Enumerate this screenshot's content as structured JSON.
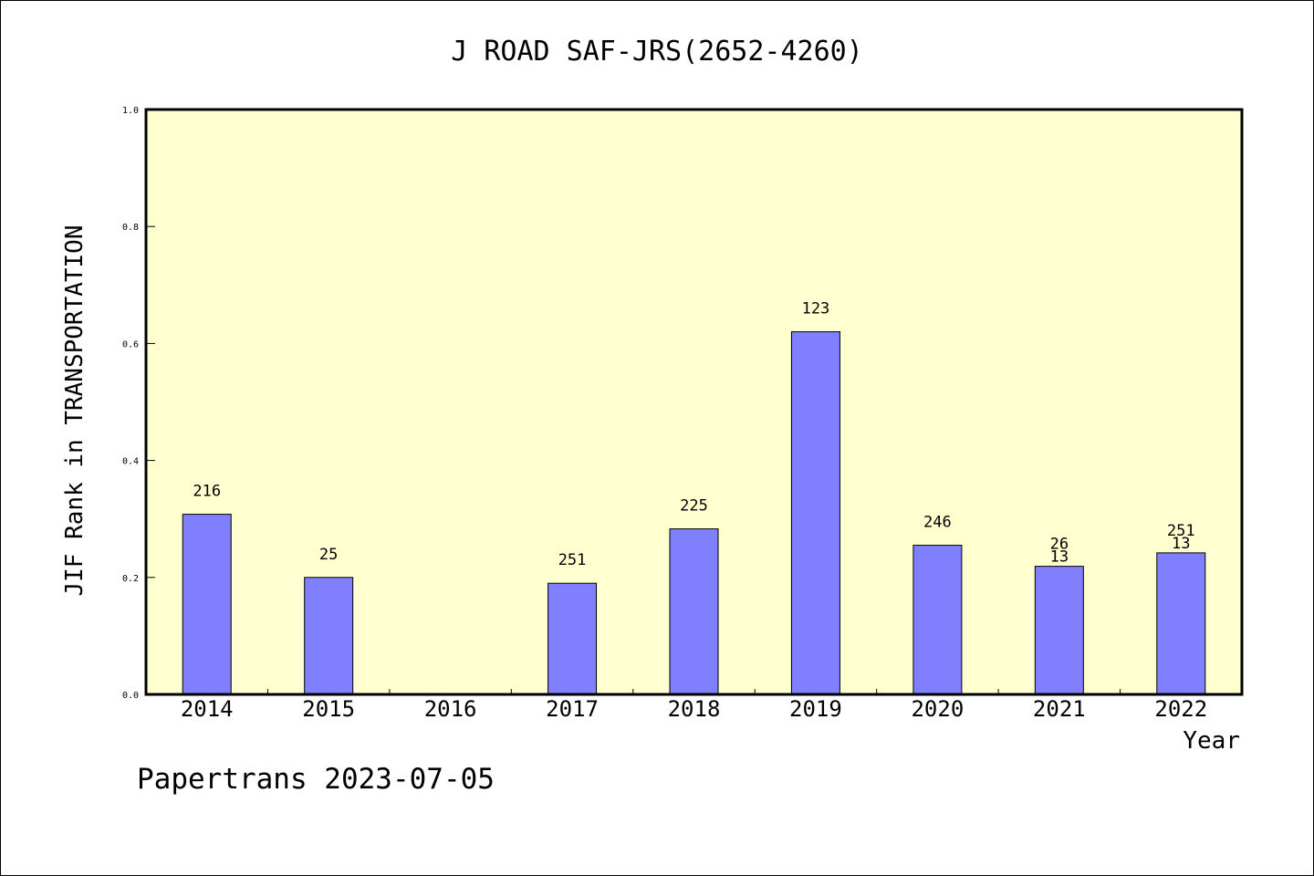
{
  "chart_data": {
    "type": "bar",
    "title": "J ROAD SAF-JRS(2652-4260)",
    "xlabel": "Year",
    "ylabel": "JIF Rank in TRANSPORTATION",
    "categories": [
      "2014",
      "2015",
      "2016",
      "2017",
      "2018",
      "2019",
      "2020",
      "2021",
      "2022"
    ],
    "values": [
      0.308,
      0.2,
      null,
      0.19,
      0.283,
      0.62,
      0.255,
      0.219,
      0.242
    ],
    "bar_labels": [
      [
        "216"
      ],
      [
        "25"
      ],
      [],
      [
        "251"
      ],
      [
        "225"
      ],
      [
        "123"
      ],
      [
        "246"
      ],
      [
        "26",
        "13"
      ],
      [
        "251",
        "13"
      ]
    ],
    "ylim": [
      0,
      1.0
    ],
    "yticks": [
      "0.0",
      "0.2",
      "0.4",
      "0.6",
      "0.8",
      "1.0"
    ],
    "grid": false,
    "colors": {
      "bar": "#8080ff",
      "plot_background": "#ffffd0",
      "axis": "#000000"
    }
  },
  "footer": {
    "text": "Papertrans 2023-07-05"
  }
}
